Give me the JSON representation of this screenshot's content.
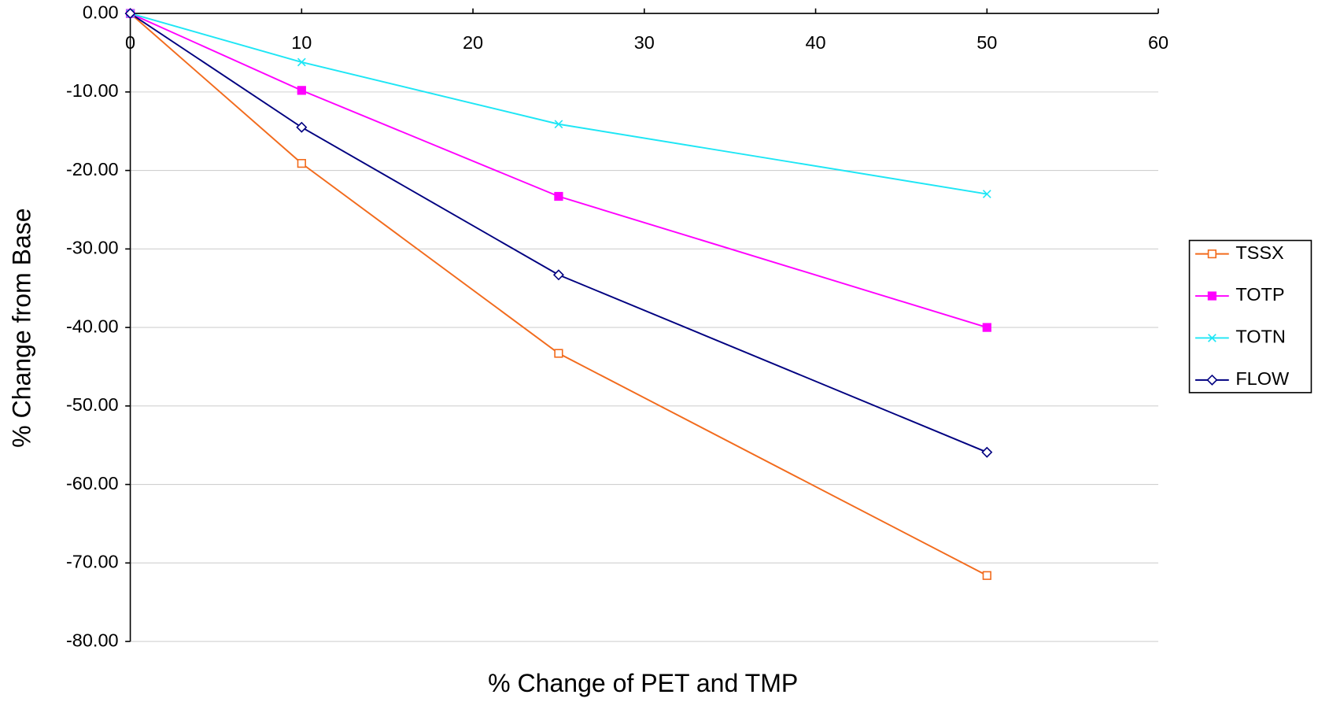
{
  "chart_data": {
    "type": "line",
    "x_label": "% Change of PET and TMP",
    "y_label": "% Change from Base",
    "x": [
      0,
      10,
      25,
      50
    ],
    "series": [
      {
        "name": "TSSX",
        "color": "#f26b1d",
        "marker": "open-square",
        "values": [
          0,
          -19.1,
          -43.3,
          -71.6
        ]
      },
      {
        "name": "TOTP",
        "color": "#ff00ff",
        "marker": "filled-square",
        "values": [
          0,
          -9.8,
          -23.3,
          -40.0
        ]
      },
      {
        "name": "TOTN",
        "color": "#1ee6f5",
        "marker": "x",
        "values": [
          0,
          -6.2,
          -14.1,
          -23.0
        ]
      },
      {
        "name": "FLOW",
        "color": "#000080",
        "marker": "open-diamond",
        "values": [
          0,
          -14.5,
          -33.3,
          -55.9
        ]
      }
    ],
    "xlim": [
      0,
      60
    ],
    "xticks": [
      0,
      10,
      20,
      30,
      40,
      50,
      60
    ],
    "ylim": [
      -80,
      0
    ],
    "yticks": [
      {
        "value": 0,
        "label": "0.00"
      },
      {
        "value": -10,
        "label": "-10.00"
      },
      {
        "value": -20,
        "label": "-20.00"
      },
      {
        "value": -30,
        "label": "-30.00"
      },
      {
        "value": -40,
        "label": "-40.00"
      },
      {
        "value": -50,
        "label": "-50.00"
      },
      {
        "value": -60,
        "label": "-60.00"
      },
      {
        "value": -70,
        "label": "-70.00"
      },
      {
        "value": -80,
        "label": "-80.00"
      }
    ],
    "grid": true,
    "legend": "right"
  }
}
